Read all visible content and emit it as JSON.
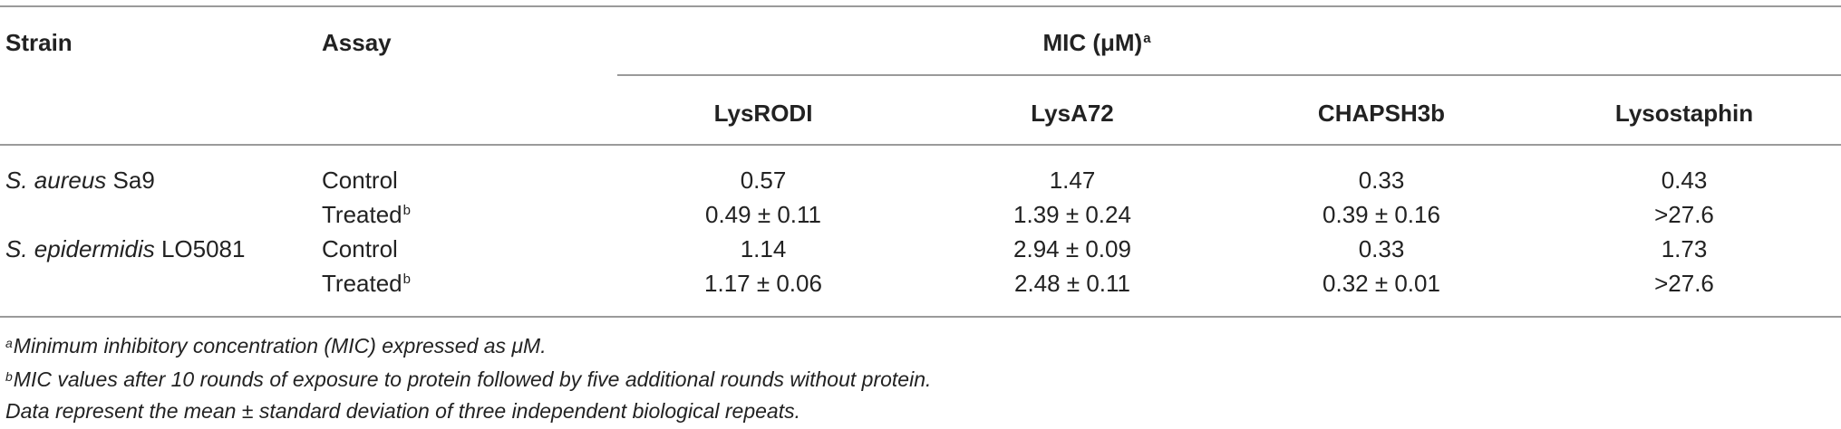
{
  "header": {
    "strain": "Strain",
    "assay": "Assay",
    "mic_group": "MIC (μM)",
    "mic_group_sup": "a",
    "columns": [
      "LysRODI",
      "LysA72",
      "CHAPSH3b",
      "Lysostaphin"
    ]
  },
  "rows": [
    {
      "strain_italic": "S. aureus",
      "strain_rest": " Sa9",
      "assay": "Control",
      "assay_sup": "",
      "values": [
        "0.57",
        "1.47",
        "0.33",
        "0.43"
      ]
    },
    {
      "strain_italic": "",
      "strain_rest": "",
      "assay": "Treated",
      "assay_sup": "b",
      "values": [
        "0.49 ± 0.11",
        "1.39 ± 0.24",
        "0.39 ± 0.16",
        ">27.6"
      ]
    },
    {
      "strain_italic": "S. epidermidis",
      "strain_rest": " LO5081",
      "assay": "Control",
      "assay_sup": "",
      "values": [
        "1.14",
        "2.94 ± 0.09",
        "0.33",
        "1.73"
      ]
    },
    {
      "strain_italic": "",
      "strain_rest": "",
      "assay": "Treated",
      "assay_sup": "b",
      "values": [
        "1.17 ± 0.06",
        "2.48 ± 0.11",
        "0.32 ± 0.01",
        ">27.6"
      ]
    }
  ],
  "footnotes": [
    {
      "sup": "a",
      "text": "Minimum inhibitory concentration (MIC) expressed as μM."
    },
    {
      "sup": "b",
      "text": "MIC values after 10 rounds of exposure to protein followed by five additional rounds without protein."
    },
    {
      "sup": "",
      "text": "Data represent the mean ± standard deviation of three independent biological repeats."
    }
  ]
}
